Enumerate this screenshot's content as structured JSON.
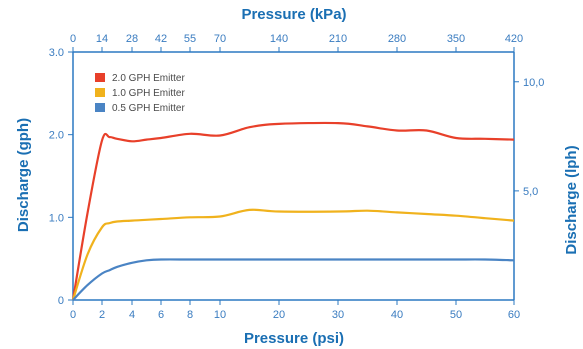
{
  "chart_data": {
    "type": "line",
    "title": "",
    "xlabel": "Pressure (psi)",
    "xlabel_top": "Pressure (kPa)",
    "ylabel": "Discharge (gph)",
    "ylabel_right": "Discharge (lph)",
    "x_ticks": [
      "0",
      "2",
      "4",
      "6",
      "8",
      "10",
      "20",
      "30",
      "40",
      "50",
      "60"
    ],
    "x_top_ticks": [
      "0",
      "14",
      "28",
      "42",
      "55",
      "70",
      "140",
      "210",
      "280",
      "350",
      "420"
    ],
    "y_ticks": [
      "0",
      "1.0",
      "2.0",
      "3.0"
    ],
    "y_right_ticks": [
      "5,0",
      "10,0"
    ],
    "y_right_tick_gph": [
      1.32,
      2.64
    ],
    "ylim": [
      0,
      3.0
    ],
    "grid": false,
    "legend_position": "top-left",
    "x": [
      0,
      1,
      2,
      2.5,
      3,
      4,
      5,
      6,
      8,
      10,
      15,
      20,
      30,
      35,
      40,
      45,
      50,
      55,
      60
    ],
    "series": [
      {
        "name": "2.0 GPH Emitter",
        "color": "#e8402a",
        "values": [
          0,
          1.05,
          1.93,
          1.97,
          1.95,
          1.92,
          1.94,
          1.96,
          2.01,
          1.99,
          2.09,
          2.13,
          2.14,
          2.1,
          2.05,
          2.05,
          1.96,
          1.95,
          1.94
        ]
      },
      {
        "name": "1.0 GPH Emitter",
        "color": "#f0b21d",
        "values": [
          0,
          0.55,
          0.88,
          0.93,
          0.95,
          0.96,
          0.97,
          0.98,
          1.0,
          1.01,
          1.09,
          1.07,
          1.07,
          1.08,
          1.06,
          1.04,
          1.02,
          0.99,
          0.96
        ]
      },
      {
        "name": "0.5 GPH Emitter",
        "color": "#4a84c4",
        "values": [
          0,
          0.18,
          0.32,
          0.36,
          0.4,
          0.45,
          0.48,
          0.49,
          0.49,
          0.49,
          0.49,
          0.49,
          0.49,
          0.49,
          0.49,
          0.49,
          0.49,
          0.49,
          0.48
        ]
      }
    ],
    "colors": {
      "axis": "#2b78c2",
      "text": "#1a6fb3"
    }
  }
}
